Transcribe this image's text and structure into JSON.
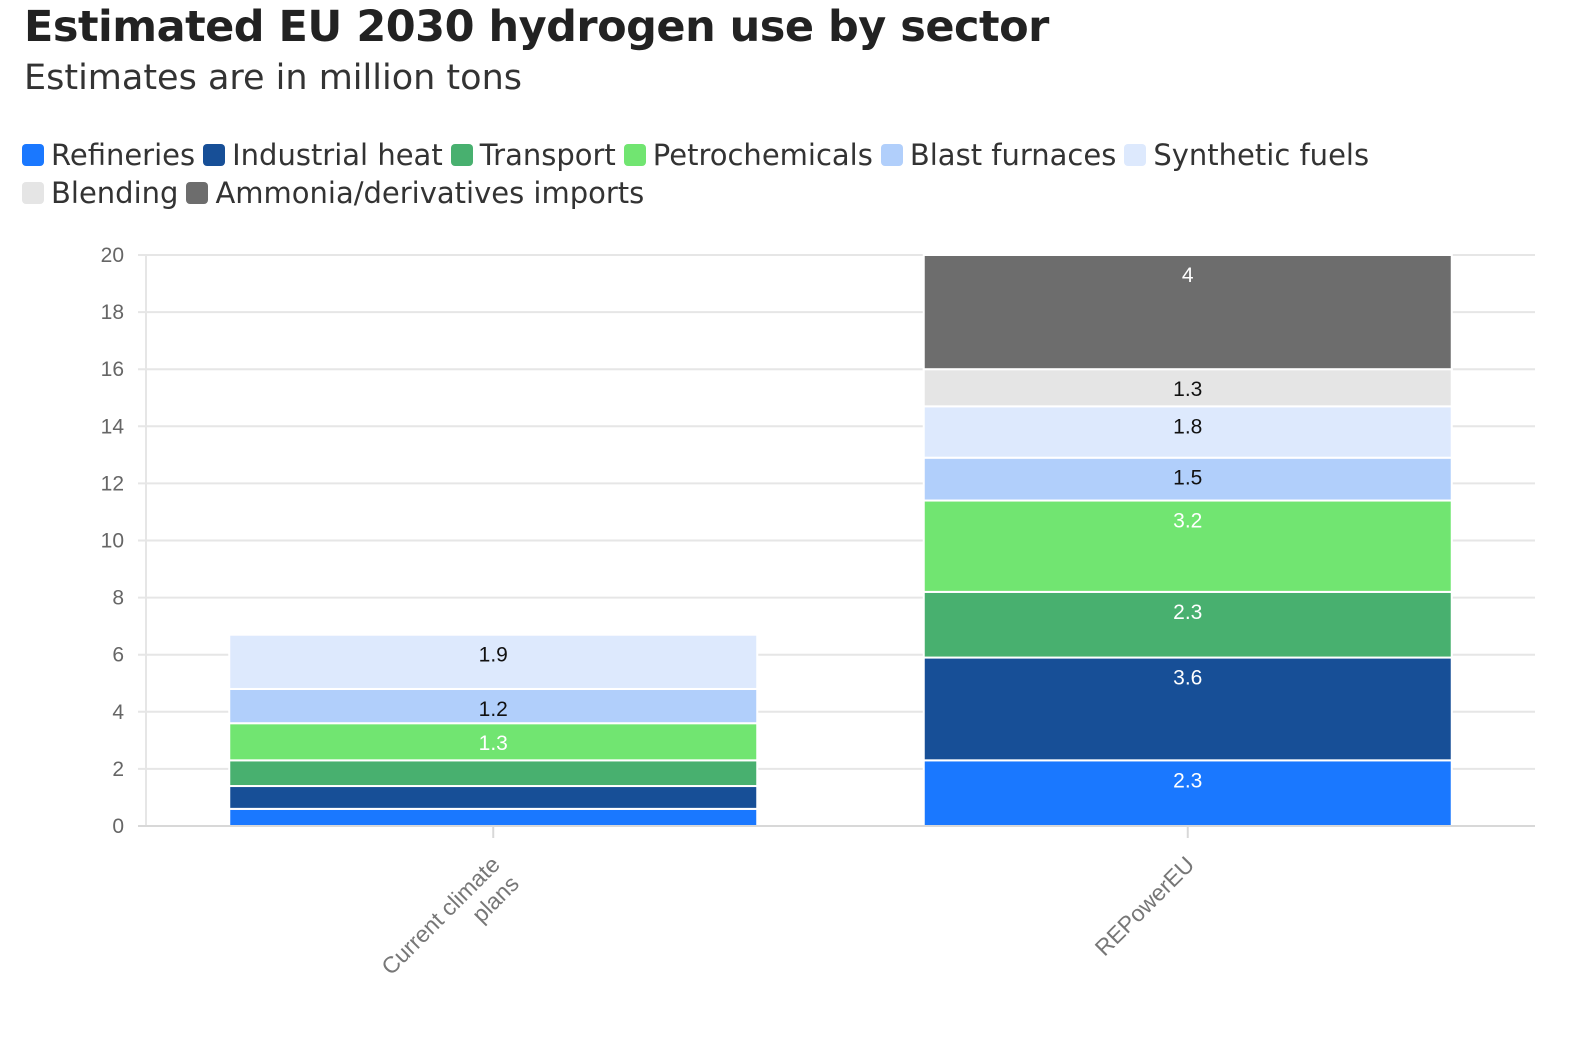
{
  "title": "Estimated EU 2030 hydrogen use by sector",
  "subtitle": "Estimates are in million tons",
  "legend": [
    {
      "label": "Refineries",
      "color": "#1a78ff"
    },
    {
      "label": "Industrial heat",
      "color": "#174f97"
    },
    {
      "label": "Transport",
      "color": "#48b06f"
    },
    {
      "label": "Petrochemicals",
      "color": "#71e571"
    },
    {
      "label": "Blast furnaces",
      "color": "#b1cffb"
    },
    {
      "label": "Synthetic fuels",
      "color": "#dde9fd"
    },
    {
      "label": "Blending",
      "color": "#e5e5e5"
    },
    {
      "label": "Ammonia/derivatives imports",
      "color": "#6d6d6d"
    }
  ],
  "chart_data": {
    "type": "bar",
    "stacked": true,
    "categories": [
      "Current climate plans",
      "REPowerEU"
    ],
    "ylim": [
      0,
      20
    ],
    "yticks": [
      0,
      2,
      4,
      6,
      8,
      10,
      12,
      14,
      16,
      18,
      20
    ],
    "grid": true,
    "legend_position": "top-left",
    "series": [
      {
        "name": "Refineries",
        "color": "#1a78ff",
        "label_color": "#ffffff",
        "values": [
          0.6,
          2.3
        ],
        "labels": [
          "",
          "2.3"
        ]
      },
      {
        "name": "Industrial heat",
        "color": "#174f97",
        "label_color": "#ffffff",
        "values": [
          0.8,
          3.6
        ],
        "labels": [
          "",
          "3.6"
        ]
      },
      {
        "name": "Transport",
        "color": "#48b06f",
        "label_color": "#ffffff",
        "values": [
          0.9,
          2.3
        ],
        "labels": [
          "",
          "2.3"
        ]
      },
      {
        "name": "Petrochemicals",
        "color": "#71e571",
        "label_color": "#ffffff",
        "values": [
          1.3,
          3.2
        ],
        "labels": [
          "1.3",
          "3.2"
        ]
      },
      {
        "name": "Blast furnaces",
        "color": "#b1cffb",
        "label_color": "#111111",
        "values": [
          1.2,
          1.5
        ],
        "labels": [
          "1.2",
          "1.5"
        ]
      },
      {
        "name": "Synthetic fuels",
        "color": "#dde9fd",
        "label_color": "#111111",
        "values": [
          1.9,
          1.8
        ],
        "labels": [
          "1.9",
          "1.8"
        ]
      },
      {
        "name": "Blending",
        "color": "#e5e5e5",
        "label_color": "#111111",
        "values": [
          0,
          1.3
        ],
        "labels": [
          "",
          "1.3"
        ]
      },
      {
        "name": "Ammonia/derivatives imports",
        "color": "#6d6d6d",
        "label_color": "#ffffff",
        "values": [
          0,
          4
        ],
        "labels": [
          "",
          "4"
        ]
      }
    ]
  }
}
